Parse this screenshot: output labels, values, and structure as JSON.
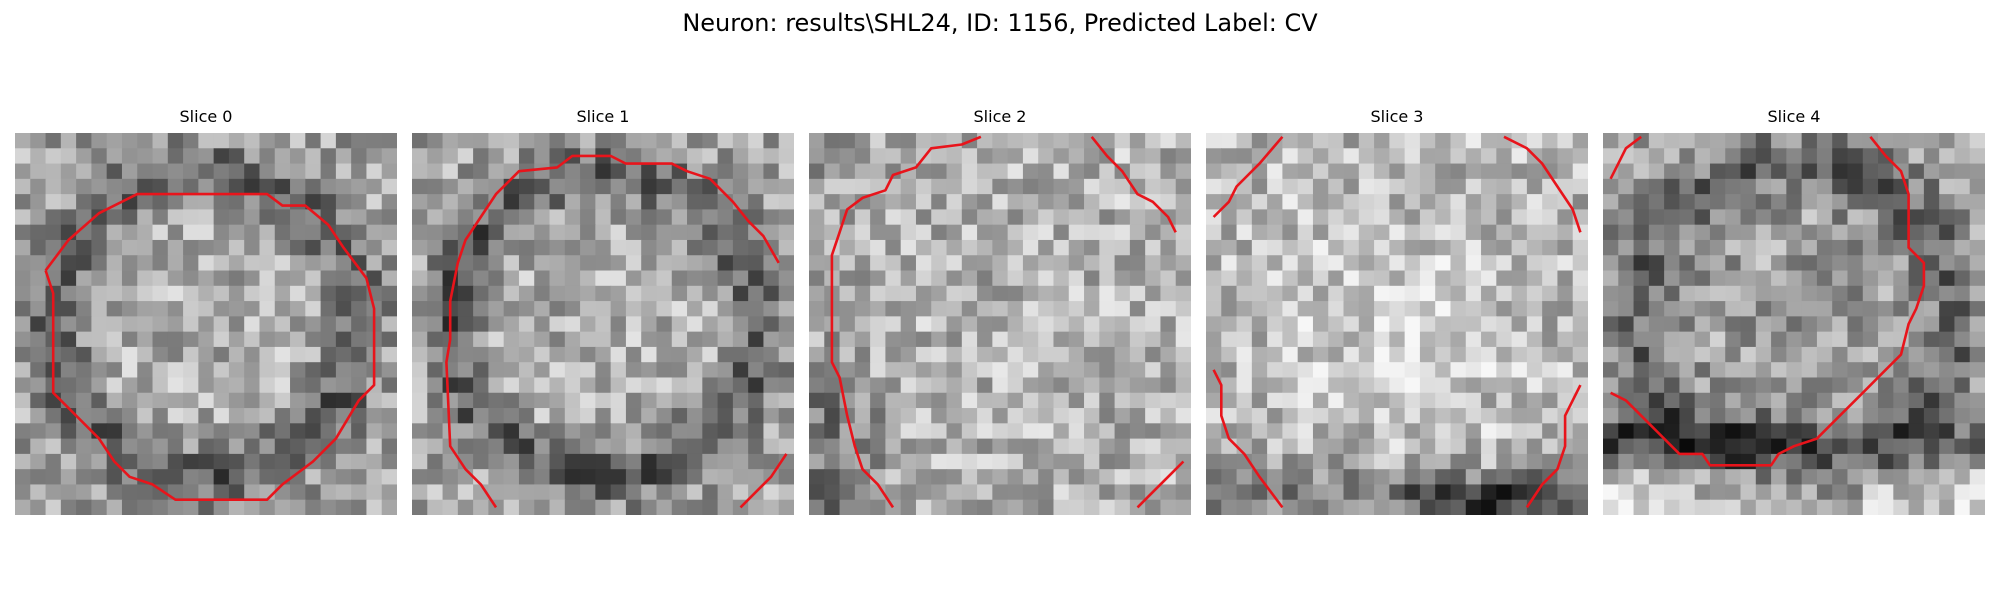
{
  "figure": {
    "title": "Neuron: results\\SHL24, ID: 1156, Predicted Label: CV"
  },
  "colors": {
    "contour": "#e8141b",
    "background": "#ffffff",
    "text": "#000000"
  },
  "grid_size": 25,
  "slices": [
    {
      "title": "Slice 0",
      "brightness_profile": "dark-ring-around-lighter-center",
      "contours": [
        [
          [
            0.08,
            0.36
          ],
          [
            0.14,
            0.28
          ],
          [
            0.22,
            0.21
          ],
          [
            0.32,
            0.16
          ],
          [
            0.66,
            0.16
          ],
          [
            0.7,
            0.19
          ],
          [
            0.76,
            0.19
          ],
          [
            0.82,
            0.24
          ],
          [
            0.86,
            0.3
          ],
          [
            0.92,
            0.38
          ],
          [
            0.94,
            0.46
          ],
          [
            0.94,
            0.66
          ],
          [
            0.9,
            0.7
          ],
          [
            0.84,
            0.8
          ],
          [
            0.78,
            0.86
          ],
          [
            0.7,
            0.92
          ],
          [
            0.66,
            0.96
          ],
          [
            0.42,
            0.96
          ],
          [
            0.36,
            0.92
          ],
          [
            0.3,
            0.9
          ],
          [
            0.26,
            0.86
          ],
          [
            0.22,
            0.8
          ],
          [
            0.14,
            0.72
          ],
          [
            0.1,
            0.68
          ],
          [
            0.1,
            0.42
          ],
          [
            0.08,
            0.36
          ]
        ]
      ]
    },
    {
      "title": "Slice 1",
      "brightness_profile": "dark-ring-around-lighter-center",
      "contours": [
        [
          [
            0.96,
            0.34
          ],
          [
            0.92,
            0.27
          ],
          [
            0.88,
            0.23
          ],
          [
            0.84,
            0.18
          ],
          [
            0.78,
            0.12
          ],
          [
            0.72,
            0.1
          ],
          [
            0.68,
            0.08
          ],
          [
            0.56,
            0.08
          ],
          [
            0.52,
            0.06
          ],
          [
            0.42,
            0.06
          ],
          [
            0.38,
            0.09
          ],
          [
            0.28,
            0.1
          ],
          [
            0.22,
            0.16
          ],
          [
            0.18,
            0.22
          ],
          [
            0.14,
            0.28
          ],
          [
            0.12,
            0.34
          ],
          [
            0.1,
            0.44
          ],
          [
            0.1,
            0.54
          ],
          [
            0.09,
            0.6
          ],
          [
            0.1,
            0.82
          ],
          [
            0.14,
            0.88
          ],
          [
            0.18,
            0.92
          ],
          [
            0.22,
            0.98
          ]
        ],
        [
          [
            0.86,
            0.98
          ],
          [
            0.9,
            0.94
          ],
          [
            0.94,
            0.9
          ],
          [
            0.98,
            0.84
          ]
        ]
      ]
    },
    {
      "title": "Slice 2",
      "brightness_profile": "light-field-dark-lower-left",
      "contours": [
        [
          [
            0.45,
            0.01
          ],
          [
            0.4,
            0.03
          ],
          [
            0.32,
            0.04
          ],
          [
            0.28,
            0.09
          ],
          [
            0.22,
            0.11
          ],
          [
            0.2,
            0.15
          ],
          [
            0.14,
            0.17
          ],
          [
            0.1,
            0.2
          ],
          [
            0.08,
            0.26
          ],
          [
            0.06,
            0.32
          ],
          [
            0.06,
            0.6
          ],
          [
            0.08,
            0.64
          ],
          [
            0.1,
            0.74
          ],
          [
            0.12,
            0.82
          ],
          [
            0.14,
            0.88
          ],
          [
            0.18,
            0.92
          ],
          [
            0.22,
            0.98
          ]
        ],
        [
          [
            0.74,
            0.01
          ],
          [
            0.78,
            0.06
          ],
          [
            0.82,
            0.1
          ],
          [
            0.86,
            0.16
          ],
          [
            0.9,
            0.18
          ],
          [
            0.94,
            0.22
          ],
          [
            0.96,
            0.26
          ]
        ],
        [
          [
            0.86,
            0.98
          ],
          [
            0.9,
            0.94
          ],
          [
            0.94,
            0.9
          ],
          [
            0.98,
            0.86
          ]
        ]
      ]
    },
    {
      "title": "Slice 3",
      "brightness_profile": "bright-blob-dark-bottom",
      "contours": [
        [
          [
            0.2,
            0.01
          ],
          [
            0.14,
            0.08
          ],
          [
            0.08,
            0.14
          ],
          [
            0.06,
            0.18
          ],
          [
            0.02,
            0.22
          ]
        ],
        [
          [
            0.78,
            0.01
          ],
          [
            0.84,
            0.04
          ],
          [
            0.88,
            0.08
          ],
          [
            0.92,
            0.14
          ],
          [
            0.96,
            0.2
          ],
          [
            0.98,
            0.26
          ]
        ],
        [
          [
            0.02,
            0.62
          ],
          [
            0.04,
            0.66
          ],
          [
            0.04,
            0.74
          ],
          [
            0.06,
            0.8
          ],
          [
            0.1,
            0.84
          ],
          [
            0.14,
            0.9
          ],
          [
            0.2,
            0.98
          ]
        ],
        [
          [
            0.84,
            0.98
          ],
          [
            0.88,
            0.92
          ],
          [
            0.92,
            0.88
          ],
          [
            0.94,
            0.82
          ],
          [
            0.94,
            0.74
          ],
          [
            0.96,
            0.7
          ],
          [
            0.98,
            0.66
          ]
        ]
      ]
    },
    {
      "title": "Slice 4",
      "brightness_profile": "dark-ring-dark-bottom-band",
      "contours": [
        [
          [
            0.02,
            0.12
          ],
          [
            0.04,
            0.08
          ],
          [
            0.06,
            0.04
          ],
          [
            0.1,
            0.01
          ]
        ],
        [
          [
            0.7,
            0.01
          ],
          [
            0.74,
            0.06
          ],
          [
            0.78,
            0.1
          ],
          [
            0.8,
            0.16
          ],
          [
            0.8,
            0.3
          ],
          [
            0.84,
            0.34
          ],
          [
            0.84,
            0.4
          ],
          [
            0.82,
            0.46
          ],
          [
            0.8,
            0.5
          ],
          [
            0.78,
            0.58
          ],
          [
            0.74,
            0.62
          ],
          [
            0.68,
            0.68
          ],
          [
            0.62,
            0.74
          ],
          [
            0.56,
            0.8
          ],
          [
            0.5,
            0.82
          ],
          [
            0.46,
            0.84
          ],
          [
            0.44,
            0.87
          ],
          [
            0.28,
            0.87
          ],
          [
            0.26,
            0.84
          ],
          [
            0.2,
            0.84
          ],
          [
            0.14,
            0.78
          ],
          [
            0.1,
            0.74
          ],
          [
            0.06,
            0.7
          ],
          [
            0.02,
            0.68
          ]
        ]
      ]
    }
  ]
}
